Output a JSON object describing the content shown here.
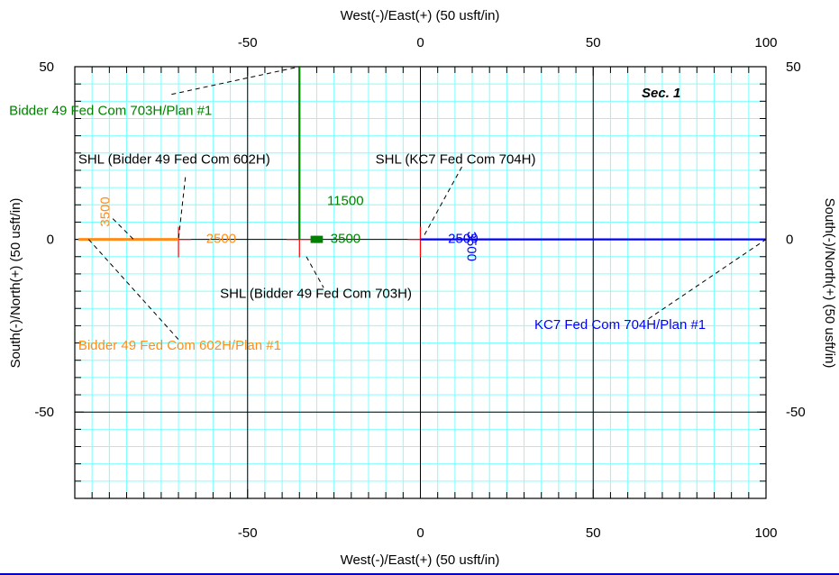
{
  "chart_data": {
    "type": "line",
    "title": "",
    "xlabel": "West(-)/East(+) (50 usft/in)",
    "ylabel": "South(-)/North(+) (50 usft/in)",
    "xlim": [
      -100,
      100
    ],
    "ylim": [
      -75,
      50
    ],
    "x_ticks": [
      -50,
      0,
      50,
      100
    ],
    "y_ticks": [
      -50,
      0,
      50
    ],
    "x_tick_labels": [
      "-50",
      "0",
      "50",
      "100"
    ],
    "y_tick_labels": [
      "-50",
      "0",
      "50"
    ],
    "grid": true,
    "section_label": "Sec. 1",
    "colors": {
      "grid": "#7fffff",
      "orange": "#ff8c1a",
      "green": "#008000",
      "blue": "#0000ff",
      "red": "#ff0000"
    },
    "series": [
      {
        "name": "Bidder 49 Fed Com 602H/Plan #1",
        "color": "#ff8c1a",
        "x": [
          -99,
          -70
        ],
        "y": [
          0,
          0
        ]
      },
      {
        "name": "Bidder 49 Fed Com 703H/Plan #1",
        "color": "#008000",
        "x": [
          -35,
          -35
        ],
        "y": [
          0,
          50
        ]
      },
      {
        "name": "KC7 Fed Com 704H/Plan #1",
        "color": "#0000ff",
        "x": [
          0,
          100
        ],
        "y": [
          0,
          0
        ]
      }
    ],
    "surface_locations": [
      {
        "label": "SHL (Bidder 49 Fed Com 602H)",
        "x": -70,
        "y": 0
      },
      {
        "label": "SHL (Bidder 49 Fed Com 703H)",
        "x": -35,
        "y": 0
      },
      {
        "label": "SHL (KC7 Fed Com 704H)",
        "x": 0,
        "y": 0
      }
    ],
    "md_labels": [
      {
        "text": "3500",
        "color": "#ff8c1a",
        "x": -90,
        "y": 8,
        "rotate": true
      },
      {
        "text": "2500",
        "color": "#ff8c1a",
        "x": -62,
        "y": -1,
        "rotate": false
      },
      {
        "text": "11500",
        "color": "#008000",
        "x": -27,
        "y": 10,
        "rotate": false
      },
      {
        "text": "3500",
        "color": "#008000",
        "x": -26,
        "y": -1,
        "rotate": false
      },
      {
        "text": "2500",
        "color": "#0000ff",
        "x": 8,
        "y": -1,
        "rotate": false
      },
      {
        "text": "3500",
        "color": "#0000ff",
        "x": 13.5,
        "y": -2,
        "rotate": true
      }
    ]
  }
}
